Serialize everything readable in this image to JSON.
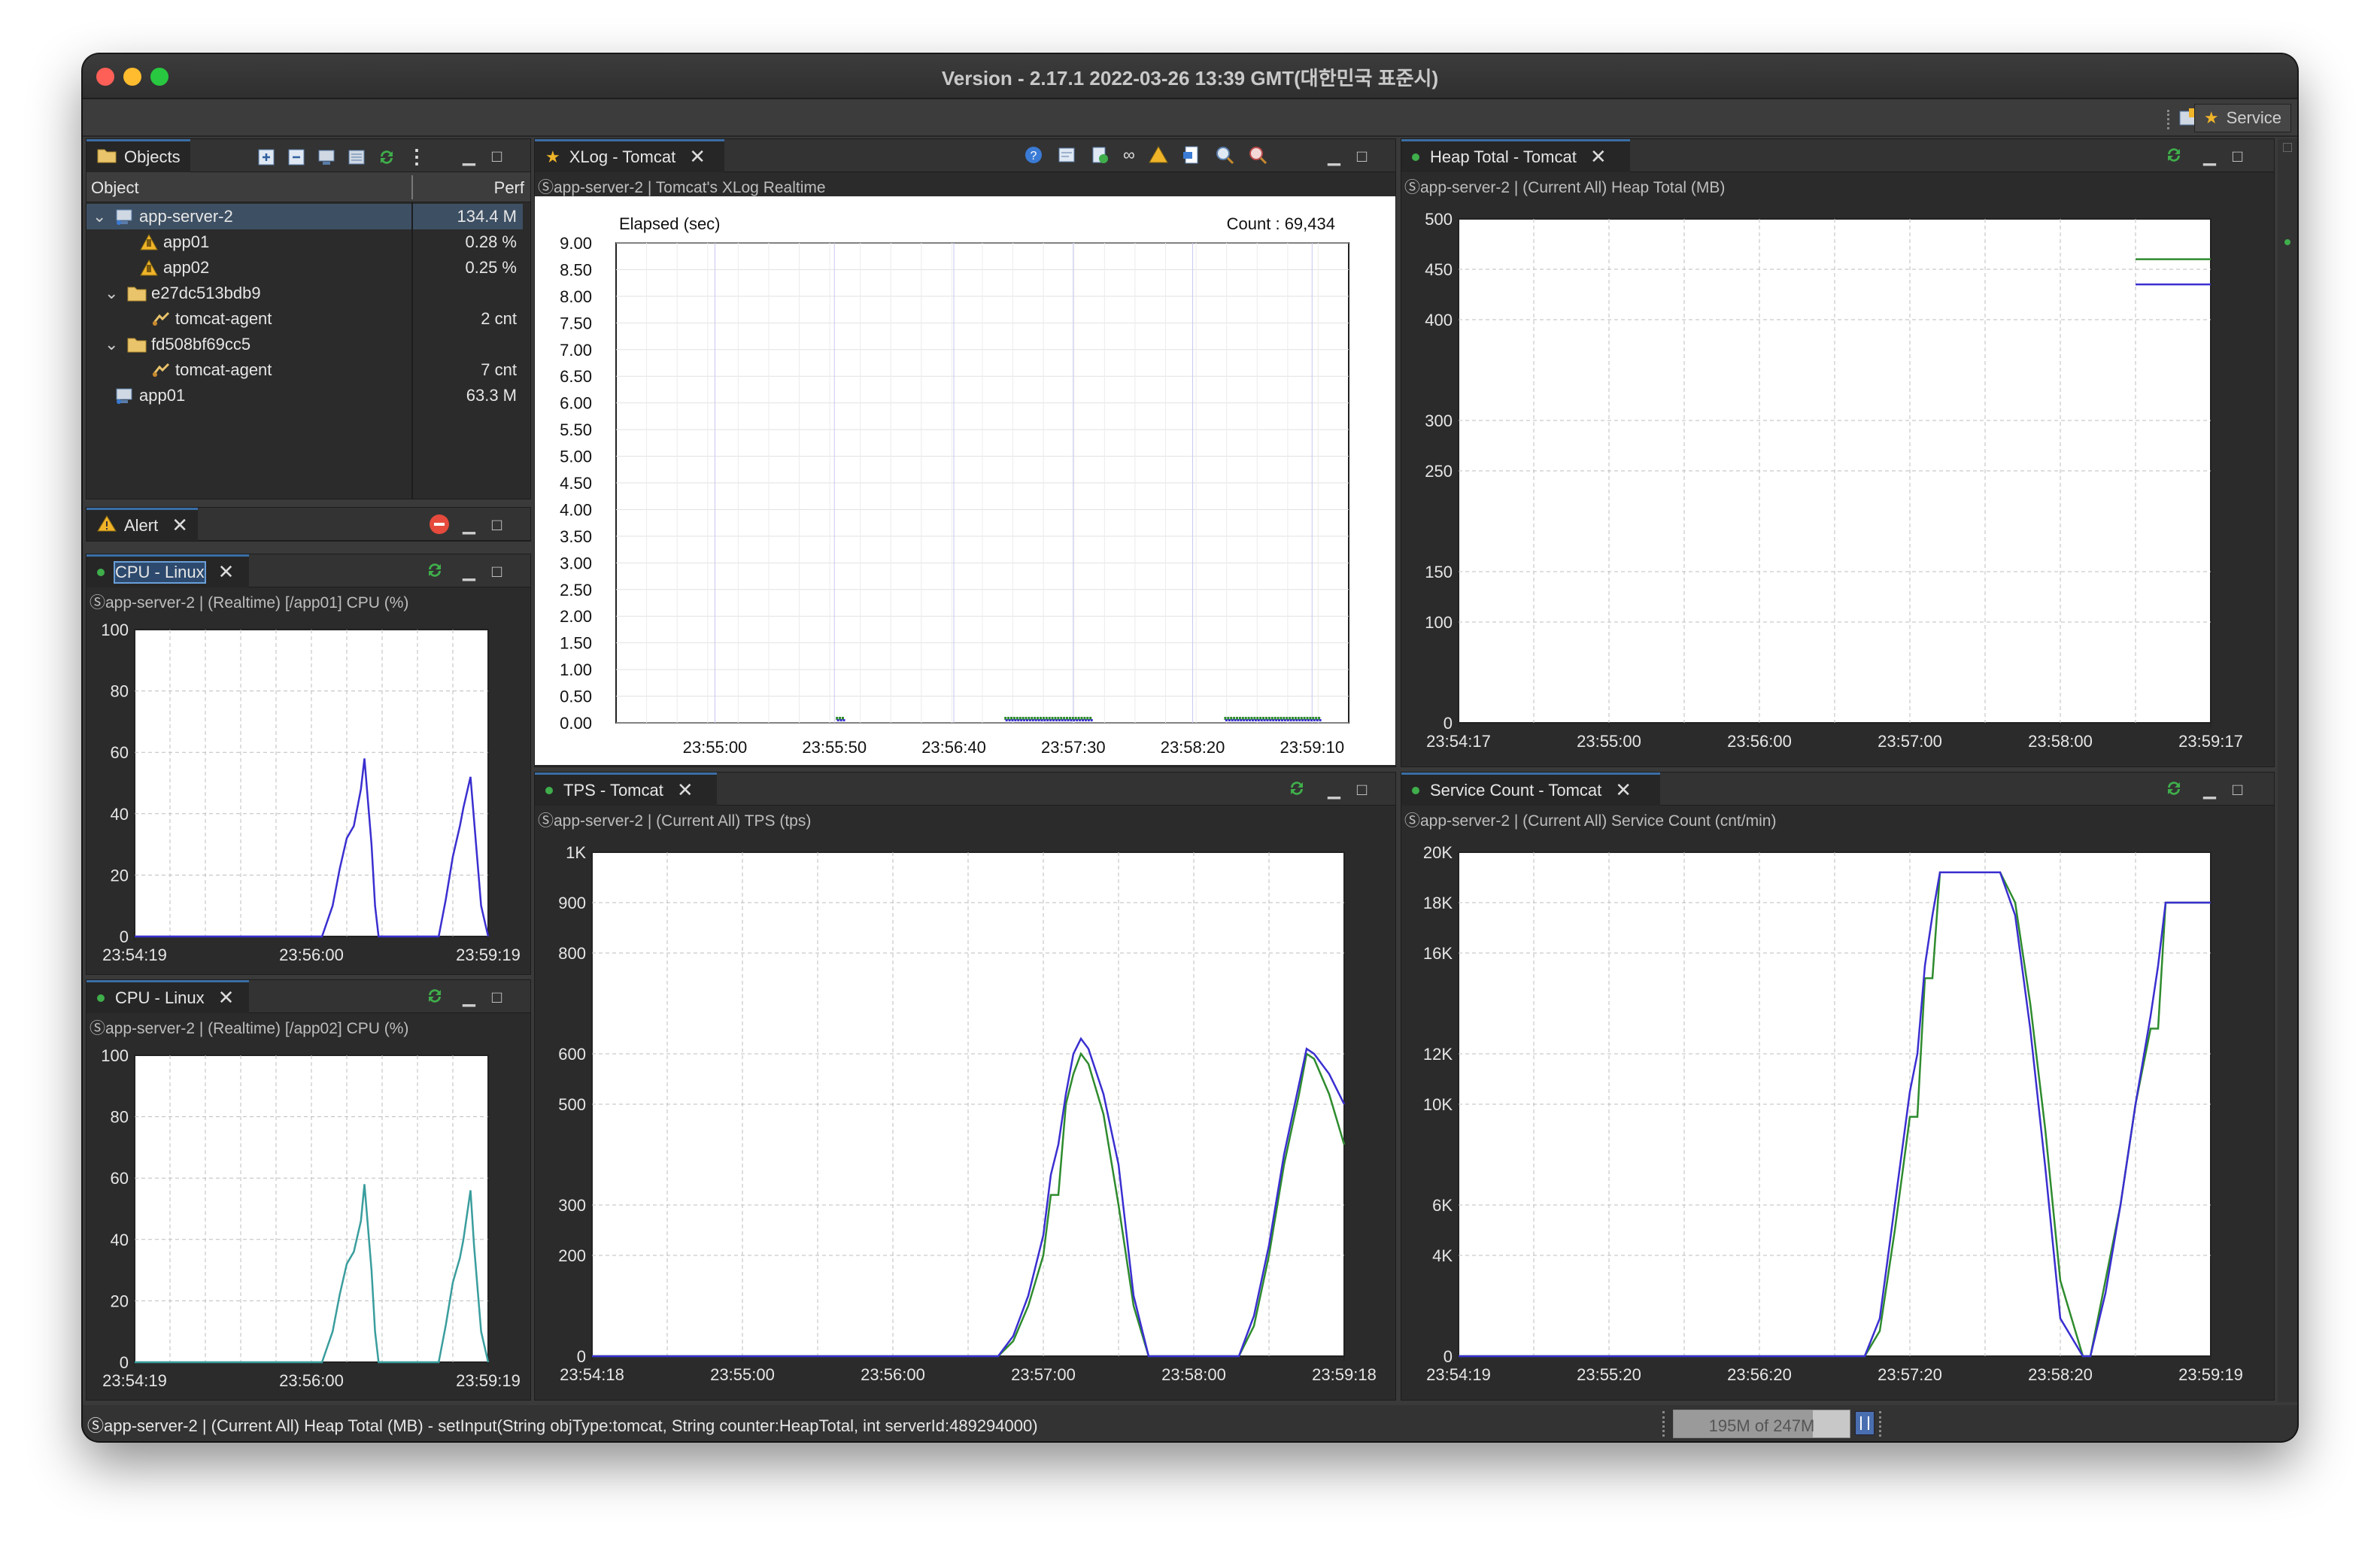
{
  "window": {
    "title": "Version - 2.17.1 2022-03-26 13:39 GMT(대한민국 표준시)",
    "perspective": "Service"
  },
  "objects": {
    "tab_label": "Objects",
    "col_object": "Object",
    "col_perf": "Perf",
    "rows": [
      {
        "label": "app-server-2",
        "perf": "134.4 M"
      },
      {
        "label": "app01",
        "perf": "0.28 %"
      },
      {
        "label": "app02",
        "perf": "0.25 %"
      },
      {
        "label": "e27dc513bdb9",
        "perf": ""
      },
      {
        "label": "tomcat-agent",
        "perf": "2 cnt"
      },
      {
        "label": "fd508bf69cc5",
        "perf": ""
      },
      {
        "label": "tomcat-agent",
        "perf": "7 cnt"
      },
      {
        "label": "app01",
        "perf": "63.3 M"
      }
    ]
  },
  "alert": {
    "tab_label": "Alert"
  },
  "cpu1": {
    "tab_label": "CPU - Linux",
    "subtitle": "Ⓢapp-server-2 | (Realtime) [/app01] CPU (%)"
  },
  "cpu2": {
    "tab_label": "CPU - Linux",
    "subtitle": "Ⓢapp-server-2 | (Realtime) [/app02] CPU (%)"
  },
  "xlog": {
    "tab_label": "XLog - Tomcat",
    "subtitle": "Ⓢapp-server-2 | Tomcat's XLog Realtime"
  },
  "heap": {
    "tab_label": "Heap Total - Tomcat",
    "subtitle": "Ⓢapp-server-2 | (Current All) Heap Total (MB)"
  },
  "tps": {
    "tab_label": "TPS - Tomcat",
    "subtitle": "Ⓢapp-server-2 | (Current All) TPS (tps)"
  },
  "svc": {
    "tab_label": "Service Count - Tomcat",
    "subtitle": "Ⓢapp-server-2 | (Current All) Service Count (cnt/min)"
  },
  "status": {
    "message": "Ⓢapp-server-2 | (Current All) Heap Total (MB) - setInput(String objType:tomcat, String counter:HeapTotal, int serverId:489294000)",
    "memory": "195M of 247M"
  },
  "colors": {
    "green": "#2e8b2e",
    "blue": "#3a2fd0",
    "teal": "#3a9d9d",
    "grid": "#c8c8c8"
  },
  "chart_data": [
    {
      "id": "cpu1",
      "type": "line",
      "yticks": [
        "0",
        "20",
        "40",
        "60",
        "80",
        "100"
      ],
      "ylim": [
        0,
        100
      ],
      "xticks": [
        "23:54:19",
        "23:56:00",
        "23:59:19"
      ],
      "series": [
        {
          "color": "blue",
          "x": [
            0,
            0.53,
            0.56,
            0.58,
            0.6,
            0.62,
            0.64,
            0.65,
            0.67,
            0.68,
            0.69,
            0.86,
            0.88,
            0.9,
            0.92,
            0.93,
            0.95,
            0.96,
            0.98,
            1
          ],
          "values": [
            0,
            0,
            10,
            22,
            32,
            36,
            48,
            58,
            30,
            10,
            0,
            0,
            12,
            26,
            36,
            42,
            52,
            38,
            10,
            0
          ]
        }
      ]
    },
    {
      "id": "cpu2",
      "type": "line",
      "yticks": [
        "0",
        "20",
        "40",
        "60",
        "80",
        "100"
      ],
      "ylim": [
        0,
        100
      ],
      "xticks": [
        "23:54:19",
        "23:56:00",
        "23:59:19"
      ],
      "series": [
        {
          "color": "teal",
          "x": [
            0,
            0.53,
            0.56,
            0.58,
            0.6,
            0.62,
            0.64,
            0.65,
            0.67,
            0.68,
            0.69,
            0.86,
            0.88,
            0.9,
            0.92,
            0.93,
            0.95,
            0.96,
            0.98,
            1
          ],
          "values": [
            0,
            0,
            10,
            22,
            32,
            36,
            46,
            58,
            30,
            10,
            0,
            0,
            12,
            26,
            34,
            40,
            56,
            38,
            10,
            0
          ]
        }
      ]
    },
    {
      "id": "xlog",
      "type": "scatter",
      "label_left": "Elapsed (sec)",
      "label_right": "Count : 69,434",
      "yticks": [
        "0.00",
        "0.50",
        "1.00",
        "1.50",
        "2.00",
        "2.50",
        "3.00",
        "3.50",
        "4.00",
        "4.50",
        "5.00",
        "5.50",
        "6.00",
        "6.50",
        "7.00",
        "7.50",
        "8.00",
        "8.50",
        "9.00"
      ],
      "ylim": [
        0,
        9
      ],
      "xticks": [
        "23:55:00",
        "23:55:50",
        "23:56:40",
        "23:57:30",
        "23:58:20",
        "23:59:10"
      ]
    },
    {
      "id": "heap",
      "type": "line",
      "yticks": [
        "0",
        "100",
        "150",
        "250",
        "300",
        "400",
        "450",
        "500"
      ],
      "ylim": [
        0,
        500
      ],
      "xticks": [
        "23:54:17",
        "23:55:00",
        "23:56:00",
        "23:57:00",
        "23:58:00",
        "23:59:17"
      ],
      "series": [
        {
          "color": "green",
          "x": [
            0.9,
            1
          ],
          "values": [
            460,
            460
          ]
        },
        {
          "color": "blue",
          "x": [
            0.9,
            1
          ],
          "values": [
            435,
            435
          ]
        }
      ]
    },
    {
      "id": "tps",
      "type": "line",
      "yticks": [
        "0",
        "200",
        "300",
        "500",
        "600",
        "800",
        "900",
        "1K"
      ],
      "ylim": [
        0,
        1000
      ],
      "xticks": [
        "23:54:18",
        "23:55:00",
        "23:56:00",
        "23:57:00",
        "23:58:00",
        "23:59:18"
      ],
      "series": [
        {
          "color": "green",
          "x": [
            0,
            0.54,
            0.56,
            0.58,
            0.6,
            0.61,
            0.62,
            0.63,
            0.64,
            0.65,
            0.66,
            0.68,
            0.7,
            0.72,
            0.74,
            0.75,
            0.86,
            0.88,
            0.9,
            0.92,
            0.94,
            0.95,
            0.96,
            0.98,
            1
          ],
          "values": [
            0,
            0,
            30,
            100,
            200,
            320,
            320,
            500,
            560,
            600,
            580,
            480,
            300,
            100,
            0,
            0,
            0,
            60,
            200,
            380,
            520,
            600,
            590,
            520,
            420
          ]
        },
        {
          "color": "blue",
          "x": [
            0,
            0.54,
            0.56,
            0.58,
            0.6,
            0.61,
            0.62,
            0.63,
            0.64,
            0.65,
            0.66,
            0.68,
            0.7,
            0.72,
            0.74,
            0.75,
            0.86,
            0.88,
            0.9,
            0.92,
            0.94,
            0.95,
            0.96,
            0.98,
            1
          ],
          "values": [
            0,
            0,
            40,
            120,
            240,
            360,
            420,
            520,
            600,
            630,
            610,
            520,
            380,
            120,
            0,
            0,
            0,
            80,
            220,
            400,
            540,
            610,
            600,
            560,
            500
          ]
        }
      ]
    },
    {
      "id": "svc",
      "type": "line",
      "yticks": [
        "0",
        "4K",
        "6K",
        "10K",
        "12K",
        "16K",
        "18K",
        "20K"
      ],
      "ylim": [
        0,
        20000
      ],
      "xticks": [
        "23:54:19",
        "23:55:20",
        "23:56:20",
        "23:57:20",
        "23:58:20",
        "23:59:19"
      ],
      "series": [
        {
          "color": "green",
          "x": [
            0,
            0.54,
            0.56,
            0.58,
            0.6,
            0.61,
            0.62,
            0.63,
            0.64,
            0.66,
            0.72,
            0.74,
            0.76,
            0.78,
            0.8,
            0.83,
            0.84,
            0.86,
            0.88,
            0.9,
            0.92,
            0.93,
            0.94,
            0.95,
            0.96,
            1
          ],
          "values": [
            0,
            0,
            1000,
            5000,
            9500,
            9500,
            15000,
            15000,
            19200,
            19200,
            19200,
            18000,
            14000,
            9000,
            3000,
            0,
            0,
            3000,
            6000,
            10000,
            13000,
            13000,
            18000,
            18000,
            18000,
            18000
          ]
        },
        {
          "color": "blue",
          "x": [
            0,
            0.54,
            0.56,
            0.58,
            0.6,
            0.61,
            0.62,
            0.63,
            0.64,
            0.66,
            0.72,
            0.74,
            0.76,
            0.78,
            0.8,
            0.83,
            0.84,
            0.86,
            0.88,
            0.9,
            0.92,
            0.93,
            0.94,
            0.95,
            0.96,
            1
          ],
          "values": [
            0,
            0,
            1500,
            6000,
            10500,
            12000,
            15500,
            17500,
            19200,
            19200,
            19200,
            17500,
            13000,
            7500,
            1500,
            0,
            0,
            2500,
            6000,
            10000,
            13500,
            15500,
            18000,
            18000,
            18000,
            18000
          ]
        }
      ]
    }
  ]
}
